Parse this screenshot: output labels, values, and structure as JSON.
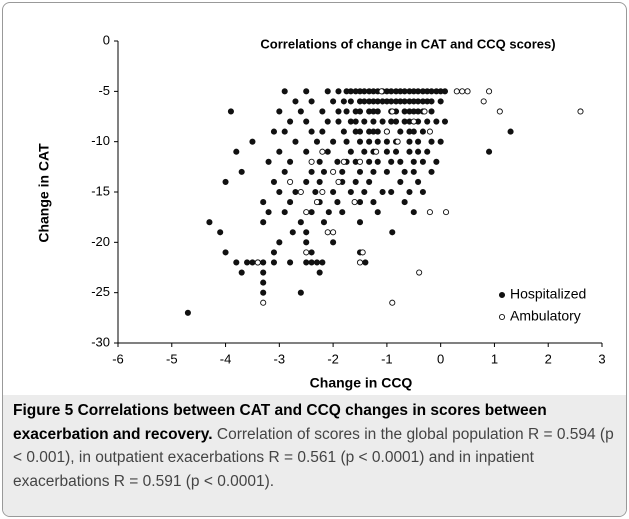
{
  "chart_data": {
    "type": "scatter",
    "title": "Correlations of change in CAT and CCQ scores)",
    "x_label": "Change in CCQ",
    "y_label": "Change in  CAT",
    "xlim": [
      -6,
      3
    ],
    "xticks": [
      -6,
      -5,
      -4,
      -3,
      -2,
      -1,
      0,
      1,
      2,
      3
    ],
    "ylim": [
      -30,
      0
    ],
    "yticks": [
      -30,
      -25,
      -20,
      -15,
      -10,
      -5,
      0
    ],
    "legend": "bottom-right",
    "series": [
      {
        "name": "Hospitalized",
        "color": "#111111",
        "marker": "filled",
        "x": [
          -2.9,
          -2.5,
          -2.1,
          -1.9,
          -1.75,
          -1.67,
          -1.58,
          -1.5,
          -1.42,
          -1.33,
          -1.25,
          -1.17,
          -1.08,
          -1.0,
          -0.92,
          -0.83,
          -0.75,
          -0.67,
          -0.58,
          -0.5,
          -0.42,
          -0.33,
          -0.25,
          -0.17,
          -0.08,
          0.0,
          0.08,
          -2.7,
          -2.4,
          -2.0,
          -1.8,
          -1.67,
          -1.5,
          -1.42,
          -1.33,
          -1.25,
          -1.17,
          -1.08,
          -1.0,
          -0.92,
          -0.83,
          -0.75,
          -0.67,
          -0.58,
          -0.5,
          -0.42,
          -0.33,
          -0.25,
          -0.17,
          0.0,
          -3.9,
          -3.0,
          -2.6,
          -2.2,
          -1.9,
          -1.75,
          -1.58,
          -1.5,
          -1.33,
          -1.25,
          -1.17,
          -0.92,
          -0.83,
          -0.67,
          -0.58,
          -0.5,
          -0.42,
          -0.33,
          -0.17,
          -2.8,
          -2.5,
          -2.1,
          -1.9,
          -1.67,
          -1.58,
          -1.42,
          -1.25,
          -1.08,
          -0.92,
          -0.83,
          -0.67,
          -0.58,
          -0.42,
          -0.25,
          -0.08,
          0.08,
          -3.1,
          -2.9,
          -2.4,
          -2.2,
          -1.8,
          -1.58,
          -1.5,
          -1.33,
          -1.25,
          -1.17,
          -1.0,
          -0.75,
          -0.58,
          -0.5,
          -0.33,
          1.3,
          -3.5,
          -2.7,
          -2.3,
          -2.0,
          -1.75,
          -1.5,
          -1.33,
          -1.17,
          -1.0,
          -0.83,
          -0.58,
          -0.42,
          -0.17,
          0.0,
          -3.8,
          -3.0,
          -2.5,
          -2.1,
          -1.67,
          -1.42,
          -1.25,
          -1.0,
          -0.83,
          -0.58,
          -0.42,
          -0.25,
          0.9,
          -3.2,
          -2.8,
          -2.25,
          -1.92,
          -1.75,
          -1.58,
          -1.33,
          -1.17,
          -0.92,
          -0.75,
          -0.5,
          -0.33,
          -0.08,
          -3.7,
          -2.9,
          -2.4,
          -2.17,
          -1.83,
          -1.5,
          -1.25,
          -1.0,
          -0.67,
          -0.5,
          -0.17,
          -4.0,
          -3.1,
          -2.5,
          -2.25,
          -1.83,
          -1.58,
          -1.33,
          -0.75,
          -0.42,
          -3.0,
          -2.7,
          -2.33,
          -2.0,
          -1.67,
          -1.42,
          -1.08,
          -0.92,
          -0.58,
          -0.33,
          -3.3,
          -2.8,
          -2.25,
          -1.92,
          -1.5,
          -1.25,
          -0.67,
          -3.2,
          -2.9,
          -2.4,
          -2.08,
          -1.83,
          -1.17,
          -0.5,
          -4.3,
          -3.3,
          -2.6,
          -2.17,
          -1.5,
          -4.1,
          -2.75,
          -2.5,
          -0.9,
          -3.0,
          -2.5,
          -2.0,
          -4.0,
          -3.1,
          -2.4,
          -1.5,
          -3.8,
          -3.6,
          -3.5,
          -3.4,
          -3.3,
          -3.1,
          -2.8,
          -2.5,
          -2.4,
          -2.3,
          -2.2,
          -1.4,
          -3.7,
          -3.3,
          -2.25,
          -3.3,
          -3.3,
          -2.6,
          -4.7
        ],
        "y": [
          -5,
          -5,
          -5,
          -5,
          -5,
          -5,
          -5,
          -5,
          -5,
          -5,
          -5,
          -5,
          -5,
          -5,
          -5,
          -5,
          -5,
          -5,
          -5,
          -5,
          -5,
          -5,
          -5,
          -5,
          -5,
          -5,
          -5,
          -6,
          -6,
          -6,
          -6,
          -6,
          -6,
          -6,
          -6,
          -6,
          -6,
          -6,
          -6,
          -6,
          -6,
          -6,
          -6,
          -6,
          -6,
          -6,
          -6,
          -6,
          -6,
          -6,
          -7,
          -7,
          -7,
          -7,
          -7,
          -7,
          -7,
          -7,
          -7,
          -7,
          -7,
          -7,
          -7,
          -7,
          -7,
          -7,
          -7,
          -7,
          -7,
          -8,
          -8,
          -8,
          -8,
          -8,
          -8,
          -8,
          -8,
          -8,
          -8,
          -8,
          -8,
          -8,
          -8,
          -8,
          -8,
          -8,
          -9,
          -9,
          -9,
          -9,
          -9,
          -9,
          -9,
          -9,
          -9,
          -9,
          -9,
          -9,
          -9,
          -9,
          -9,
          -9,
          -10,
          -10,
          -10,
          -10,
          -10,
          -10,
          -10,
          -10,
          -10,
          -10,
          -10,
          -10,
          -10,
          -10,
          -11,
          -11,
          -11,
          -11,
          -11,
          -11,
          -11,
          -11,
          -11,
          -11,
          -11,
          -11,
          -11,
          -12,
          -12,
          -12,
          -12,
          -12,
          -12,
          -12,
          -12,
          -12,
          -12,
          -12,
          -12,
          -12,
          -13,
          -13,
          -13,
          -13,
          -13,
          -13,
          -13,
          -13,
          -13,
          -13,
          -13,
          -14,
          -14,
          -14,
          -14,
          -14,
          -14,
          -14,
          -14,
          -14,
          -15,
          -15,
          -15,
          -15,
          -15,
          -15,
          -15,
          -15,
          -15,
          -15,
          -16,
          -16,
          -16,
          -16,
          -16,
          -16,
          -16,
          -17,
          -17,
          -17,
          -17,
          -17,
          -17,
          -17,
          -18,
          -18,
          -18,
          -18,
          -18,
          -19,
          -19,
          -19,
          -19,
          -20,
          -20,
          -20,
          -21,
          -21,
          -21,
          -21,
          -22,
          -22,
          -22,
          -22,
          -22,
          -22,
          -22,
          -22,
          -22,
          -22,
          -22,
          -22,
          -23,
          -23,
          -23,
          -24,
          -25,
          -25,
          -27
        ]
      },
      {
        "name": "Ambulatory",
        "color": "#111111",
        "marker": "open",
        "x": [
          2.6,
          0.9,
          0.5,
          0.4,
          0.3,
          0.8,
          1.1,
          -1.1,
          -0.5,
          -0.3,
          -0.9,
          -1.0,
          -0.8,
          -0.2,
          -1.2,
          -1.5,
          -2.4,
          -2.2,
          -1.8,
          -2.0,
          -1.9,
          -2.8,
          -2.2,
          -2.6,
          -2.3,
          -1.6,
          -2.5,
          -2.1,
          -2.0,
          -0.2,
          0.1,
          -1.5,
          -1.45,
          -2.5,
          -3.4,
          -3.3,
          -0.9,
          -0.4
        ],
        "y": [
          -7,
          -5,
          -5,
          -5,
          -5,
          -6,
          -7,
          -5,
          -8,
          -7,
          -7,
          -9,
          -10,
          -9,
          -11,
          -12,
          -12,
          -11,
          -12,
          -13,
          -14,
          -14,
          -15,
          -15,
          -16,
          -16,
          -17,
          -19,
          -19,
          -17,
          -17,
          -22,
          -21,
          -21,
          -22,
          -26,
          -26,
          -23
        ]
      }
    ]
  },
  "caption": {
    "label": "Figure 5",
    "title": "Correlations between CAT and CCQ changes in scores between exacerbation and recovery.",
    "text": "Correlation of scores in the global population R = 0.594 (p < 0.001), in outpatient exacerbations R = 0.561 (p < 0.0001) and in inpatient exacerbations R = 0.591 (p < 0.0001)."
  }
}
